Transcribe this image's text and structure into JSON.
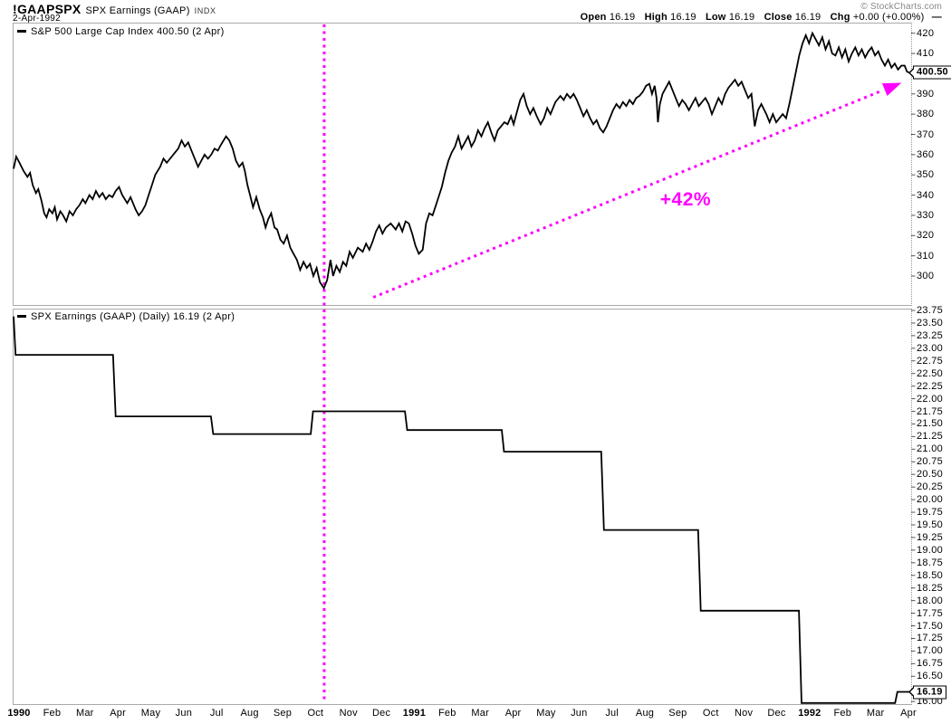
{
  "header": {
    "symbol": "!GAAPSPX",
    "symbol_desc": "SPX Earnings (GAAP)",
    "exchange": "INDX",
    "date": "2-Apr-1992",
    "copyright": "© StockCharts.com",
    "quote": {
      "open_label": "Open",
      "open": "16.19",
      "high_label": "High",
      "high": "16.19",
      "low_label": "Low",
      "low": "16.19",
      "close_label": "Close",
      "close": "16.19",
      "chg_label": "Chg",
      "chg": "+0.00 (+0.00%)"
    }
  },
  "colors": {
    "series": "#000000",
    "annotation": "#ff00ff",
    "panel_border": "#aaaaaa",
    "tick": "#555555",
    "copyright_text": "#888888"
  },
  "panels": {
    "price": {
      "legend": "S&P 500 Large Cap Index 400.50 (2 Apr)",
      "last_value": 400.5,
      "last_value_label": "400.50",
      "y_tick_labels": [
        "420",
        "410",
        "390",
        "380",
        "370",
        "360",
        "350",
        "340",
        "330",
        "320",
        "310",
        "300"
      ]
    },
    "earnings": {
      "legend": "SPX Earnings (GAAP) (Daily) 16.19 (2 Apr)",
      "last_value": 16.19,
      "last_value_label": "16.19",
      "y_tick_labels": [
        "23.75",
        "23.50",
        "23.25",
        "23.00",
        "22.75",
        "22.50",
        "22.25",
        "22.00",
        "21.75",
        "21.50",
        "21.25",
        "21.00",
        "20.75",
        "20.50",
        "20.25",
        "20.00",
        "19.75",
        "19.50",
        "19.25",
        "19.00",
        "18.75",
        "18.50",
        "18.25",
        "18.00",
        "17.75",
        "17.50",
        "17.25",
        "17.00",
        "16.75",
        "16.50",
        "16.00"
      ]
    }
  },
  "x_axis": {
    "labels": [
      "1990",
      "Feb",
      "Mar",
      "Apr",
      "May",
      "Jun",
      "Jul",
      "Aug",
      "Sep",
      "Oct",
      "Nov",
      "Dec",
      "1991",
      "Feb",
      "Mar",
      "Apr",
      "May",
      "Jun",
      "Jul",
      "Aug",
      "Sep",
      "Oct",
      "Nov",
      "Dec",
      "1992",
      "Feb",
      "Mar",
      "Apr"
    ]
  },
  "annotations": {
    "vline_month": 9.43,
    "trend_arrow": {
      "from": [
        10.92,
        289.5
      ],
      "to": [
        26.8,
        394.5
      ]
    },
    "pct_label": {
      "text": "+42%",
      "month": 20.4,
      "value": 337.5
    }
  },
  "chart_data": [
    {
      "type": "line",
      "name": "S&P 500 Large Cap Index",
      "panel": "price",
      "x_unit": "months-since-Jan-1990",
      "ylim": [
        300,
        420
      ],
      "grid": false,
      "legend_position": "top-left",
      "points": [
        [
          0,
          353
        ],
        [
          0.08,
          359
        ],
        [
          0.18,
          356
        ],
        [
          0.3,
          352
        ],
        [
          0.42,
          349
        ],
        [
          0.5,
          351
        ],
        [
          0.58,
          345
        ],
        [
          0.68,
          341
        ],
        [
          0.75,
          343
        ],
        [
          0.85,
          337
        ],
        [
          0.93,
          331
        ],
        [
          1,
          329
        ],
        [
          1.08,
          333
        ],
        [
          1.18,
          331
        ],
        [
          1.25,
          334
        ],
        [
          1.32,
          328
        ],
        [
          1.42,
          332
        ],
        [
          1.5,
          330
        ],
        [
          1.6,
          327
        ],
        [
          1.7,
          332
        ],
        [
          1.8,
          330
        ],
        [
          1.9,
          333
        ],
        [
          2,
          335
        ],
        [
          2.1,
          338
        ],
        [
          2.18,
          336
        ],
        [
          2.3,
          340
        ],
        [
          2.4,
          338
        ],
        [
          2.5,
          342
        ],
        [
          2.6,
          339
        ],
        [
          2.7,
          341
        ],
        [
          2.8,
          338
        ],
        [
          2.9,
          340
        ],
        [
          3,
          339
        ],
        [
          3.1,
          342
        ],
        [
          3.2,
          344
        ],
        [
          3.3,
          340
        ],
        [
          3.45,
          336
        ],
        [
          3.55,
          339
        ],
        [
          3.7,
          333
        ],
        [
          3.8,
          330
        ],
        [
          3.9,
          332
        ],
        [
          4,
          335
        ],
        [
          4.1,
          340
        ],
        [
          4.2,
          345
        ],
        [
          4.3,
          350
        ],
        [
          4.45,
          354
        ],
        [
          4.55,
          358
        ],
        [
          4.65,
          356
        ],
        [
          4.8,
          359
        ],
        [
          4.9,
          361
        ],
        [
          5,
          363
        ],
        [
          5.1,
          367
        ],
        [
          5.2,
          364
        ],
        [
          5.3,
          366
        ],
        [
          5.4,
          362
        ],
        [
          5.5,
          358
        ],
        [
          5.6,
          354
        ],
        [
          5.7,
          357
        ],
        [
          5.8,
          360
        ],
        [
          5.9,
          358
        ],
        [
          6,
          360
        ],
        [
          6.1,
          363
        ],
        [
          6.2,
          362
        ],
        [
          6.3,
          365
        ],
        [
          6.45,
          369
        ],
        [
          6.55,
          367
        ],
        [
          6.65,
          363
        ],
        [
          6.75,
          357
        ],
        [
          6.85,
          354
        ],
        [
          6.95,
          356
        ],
        [
          7.02,
          352
        ],
        [
          7.1,
          345
        ],
        [
          7.18,
          340
        ],
        [
          7.27,
          334
        ],
        [
          7.37,
          339
        ],
        [
          7.47,
          333
        ],
        [
          7.57,
          329
        ],
        [
          7.65,
          324
        ],
        [
          7.73,
          328
        ],
        [
          7.82,
          331
        ],
        [
          7.92,
          324
        ],
        [
          8,
          323
        ],
        [
          8.1,
          318
        ],
        [
          8.2,
          316
        ],
        [
          8.3,
          320
        ],
        [
          8.4,
          314
        ],
        [
          8.5,
          311
        ],
        [
          8.6,
          308
        ],
        [
          8.7,
          303
        ],
        [
          8.8,
          307
        ],
        [
          8.9,
          304
        ],
        [
          9,
          306
        ],
        [
          9.1,
          300
        ],
        [
          9.2,
          304
        ],
        [
          9.3,
          297
        ],
        [
          9.42,
          294
        ],
        [
          9.52,
          298
        ],
        [
          9.62,
          308
        ],
        [
          9.7,
          300
        ],
        [
          9.8,
          305
        ],
        [
          9.9,
          302
        ],
        [
          10,
          307
        ],
        [
          10.1,
          305
        ],
        [
          10.2,
          312
        ],
        [
          10.3,
          309
        ],
        [
          10.45,
          314
        ],
        [
          10.6,
          312
        ],
        [
          10.7,
          316
        ],
        [
          10.8,
          313
        ],
        [
          10.9,
          317
        ],
        [
          11,
          322
        ],
        [
          11.1,
          325
        ],
        [
          11.2,
          321
        ],
        [
          11.3,
          324
        ],
        [
          11.45,
          326
        ],
        [
          11.6,
          323
        ],
        [
          11.7,
          326
        ],
        [
          11.8,
          322
        ],
        [
          11.9,
          327
        ],
        [
          12,
          326
        ],
        [
          12.1,
          321
        ],
        [
          12.2,
          315
        ],
        [
          12.3,
          311
        ],
        [
          12.42,
          313
        ],
        [
          12.52,
          326
        ],
        [
          12.62,
          331
        ],
        [
          12.72,
          330
        ],
        [
          12.82,
          335
        ],
        [
          12.92,
          340
        ],
        [
          13,
          344
        ],
        [
          13.1,
          351
        ],
        [
          13.2,
          357
        ],
        [
          13.3,
          361
        ],
        [
          13.4,
          364
        ],
        [
          13.5,
          369
        ],
        [
          13.6,
          363
        ],
        [
          13.7,
          366
        ],
        [
          13.8,
          369
        ],
        [
          13.9,
          364
        ],
        [
          14,
          367
        ],
        [
          14.1,
          372
        ],
        [
          14.2,
          369
        ],
        [
          14.3,
          373
        ],
        [
          14.4,
          376
        ],
        [
          14.5,
          371
        ],
        [
          14.6,
          367
        ],
        [
          14.7,
          372
        ],
        [
          14.8,
          374
        ],
        [
          14.9,
          376
        ],
        [
          15,
          375
        ],
        [
          15.1,
          379
        ],
        [
          15.18,
          375
        ],
        [
          15.28,
          381
        ],
        [
          15.38,
          387
        ],
        [
          15.48,
          390
        ],
        [
          15.58,
          384
        ],
        [
          15.68,
          380
        ],
        [
          15.78,
          383
        ],
        [
          15.88,
          379
        ],
        [
          16,
          375
        ],
        [
          16.1,
          378
        ],
        [
          16.2,
          383
        ],
        [
          16.3,
          380
        ],
        [
          16.45,
          386
        ],
        [
          16.6,
          389
        ],
        [
          16.7,
          387
        ],
        [
          16.8,
          390
        ],
        [
          16.9,
          388
        ],
        [
          17,
          390
        ],
        [
          17.1,
          387
        ],
        [
          17.2,
          383
        ],
        [
          17.3,
          379
        ],
        [
          17.4,
          382
        ],
        [
          17.5,
          378
        ],
        [
          17.6,
          375
        ],
        [
          17.7,
          377
        ],
        [
          17.8,
          373
        ],
        [
          17.9,
          371
        ],
        [
          18,
          374
        ],
        [
          18.1,
          378
        ],
        [
          18.2,
          382
        ],
        [
          18.3,
          385
        ],
        [
          18.4,
          383
        ],
        [
          18.5,
          386
        ],
        [
          18.6,
          384
        ],
        [
          18.7,
          387
        ],
        [
          18.8,
          385
        ],
        [
          18.9,
          388
        ],
        [
          19,
          389
        ],
        [
          19.1,
          391
        ],
        [
          19.2,
          394
        ],
        [
          19.3,
          395
        ],
        [
          19.38,
          390
        ],
        [
          19.46,
          394
        ],
        [
          19.52,
          388
        ],
        [
          19.56,
          376
        ],
        [
          19.62,
          385
        ],
        [
          19.7,
          390
        ],
        [
          19.8,
          393
        ],
        [
          19.9,
          396
        ],
        [
          20,
          392
        ],
        [
          20.1,
          388
        ],
        [
          20.2,
          384
        ],
        [
          20.3,
          387
        ],
        [
          20.4,
          385
        ],
        [
          20.5,
          382
        ],
        [
          20.6,
          385
        ],
        [
          20.7,
          388
        ],
        [
          20.8,
          384
        ],
        [
          20.9,
          386
        ],
        [
          21,
          388
        ],
        [
          21.1,
          385
        ],
        [
          21.2,
          380
        ],
        [
          21.3,
          384
        ],
        [
          21.4,
          388
        ],
        [
          21.5,
          385
        ],
        [
          21.6,
          390
        ],
        [
          21.7,
          393
        ],
        [
          21.8,
          395
        ],
        [
          21.9,
          397
        ],
        [
          22,
          394
        ],
        [
          22.1,
          396
        ],
        [
          22.2,
          392
        ],
        [
          22.3,
          388
        ],
        [
          22.4,
          390
        ],
        [
          22.5,
          374
        ],
        [
          22.6,
          382
        ],
        [
          22.7,
          385
        ],
        [
          22.85,
          380
        ],
        [
          22.95,
          376
        ],
        [
          23.05,
          380
        ],
        [
          23.15,
          376
        ],
        [
          23.25,
          378
        ],
        [
          23.35,
          380
        ],
        [
          23.45,
          378
        ],
        [
          23.55,
          385
        ],
        [
          23.65,
          393
        ],
        [
          23.75,
          401
        ],
        [
          23.85,
          409
        ],
        [
          23.95,
          415
        ],
        [
          24.05,
          419
        ],
        [
          24.15,
          415
        ],
        [
          24.25,
          420
        ],
        [
          24.35,
          417
        ],
        [
          24.45,
          414
        ],
        [
          24.55,
          418
        ],
        [
          24.65,
          412
        ],
        [
          24.75,
          416
        ],
        [
          24.85,
          410
        ],
        [
          24.95,
          409
        ],
        [
          25.05,
          413
        ],
        [
          25.15,
          408
        ],
        [
          25.25,
          412
        ],
        [
          25.35,
          406
        ],
        [
          25.45,
          410
        ],
        [
          25.55,
          413
        ],
        [
          25.65,
          409
        ],
        [
          25.75,
          412
        ],
        [
          25.85,
          408
        ],
        [
          25.95,
          411
        ],
        [
          26.05,
          413
        ],
        [
          26.15,
          409
        ],
        [
          26.25,
          411
        ],
        [
          26.35,
          407
        ],
        [
          26.45,
          404
        ],
        [
          26.55,
          407
        ],
        [
          26.65,
          403
        ],
        [
          26.75,
          405
        ],
        [
          26.85,
          402
        ],
        [
          26.95,
          404
        ],
        [
          27.05,
          404
        ],
        [
          27.12,
          401
        ],
        [
          27.2,
          400.5
        ]
      ]
    },
    {
      "type": "line",
      "name": "SPX Earnings (GAAP) (Daily)",
      "panel": "earnings",
      "x_unit": "months-since-Jan-1990",
      "ylim": [
        16.0,
        23.75
      ],
      "grid": false,
      "legend_position": "top-left",
      "points": [
        [
          0,
          23.63
        ],
        [
          0.06,
          22.87
        ],
        [
          3.02,
          22.87
        ],
        [
          3.1,
          21.65
        ],
        [
          5.99,
          21.65
        ],
        [
          6.06,
          21.3
        ],
        [
          9.02,
          21.3
        ],
        [
          9.09,
          21.75
        ],
        [
          11.88,
          21.75
        ],
        [
          11.95,
          21.38
        ],
        [
          14.82,
          21.38
        ],
        [
          14.89,
          20.95
        ],
        [
          17.84,
          20.95
        ],
        [
          17.92,
          19.4
        ],
        [
          20.78,
          19.4
        ],
        [
          20.86,
          17.8
        ],
        [
          23.84,
          17.8
        ],
        [
          23.92,
          15.97
        ],
        [
          26.76,
          15.97
        ],
        [
          26.83,
          16.19
        ],
        [
          27.2,
          16.19
        ]
      ]
    }
  ]
}
